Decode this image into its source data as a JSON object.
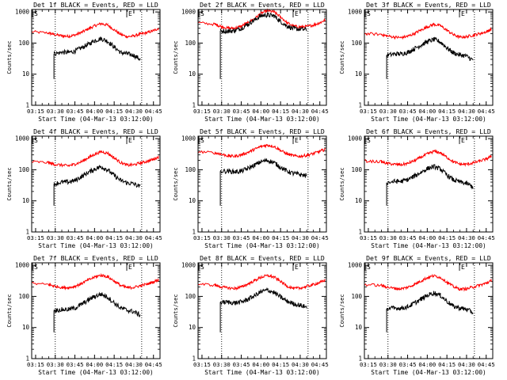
{
  "page": {
    "background": "#ffffff"
  },
  "colors": {
    "events": "#000000",
    "lld": "#ff0000",
    "axis": "#000000"
  },
  "chart_data": [
    {
      "type": "line",
      "title": "Det 1f BLACK = Events, RED = LLD",
      "xlabel": "Start Time (04-Mar-13 03:12:00)",
      "ylabel": "Counts/sec",
      "yscale": "log",
      "ylim": [
        1,
        1200
      ],
      "xlim": [
        "03:12",
        "04:50"
      ],
      "xtick_labels": [
        "03:15",
        "03:30",
        "03:45",
        "04:00",
        "04:15",
        "04:30",
        "04:45"
      ],
      "ytick_labels": [
        "1",
        "10",
        "100",
        "1000"
      ],
      "markers": [
        {
          "label": "S",
          "time": "03:12"
        },
        {
          "label": "E",
          "time": "04:24"
        }
      ],
      "dotted_lines": [
        "03:30",
        "04:36"
      ],
      "x": [
        "03:12",
        "03:25",
        "03:29",
        "03:35",
        "03:40",
        "03:45",
        "03:50",
        "03:55",
        "04:00",
        "04:05",
        "04:10",
        "04:15",
        "04:20",
        "04:25",
        "04:30",
        "04:35",
        "04:40",
        "04:45",
        "04:49"
      ],
      "series": [
        {
          "name": "LLD",
          "values": [
            230,
            210,
            190,
            170,
            165,
            180,
            220,
            280,
            360,
            420,
            380,
            270,
            190,
            160,
            170,
            195,
            215,
            250,
            300
          ]
        },
        {
          "name": "Events",
          "values": [
            null,
            null,
            45,
            50,
            50,
            55,
            70,
            90,
            120,
            140,
            115,
            75,
            50,
            45,
            40,
            30,
            null,
            null,
            null
          ]
        }
      ]
    },
    {
      "type": "line",
      "title": "Det 2f BLACK = Events, RED = LLD",
      "xlabel": "Start Time (04-Mar-13 03:12:00)",
      "ylabel": "Counts/sec",
      "yscale": "log",
      "ylim": [
        1,
        1200
      ],
      "xlim": [
        "03:12",
        "04:50"
      ],
      "xtick_labels": [
        "03:15",
        "03:30",
        "03:45",
        "04:00",
        "04:15",
        "04:30",
        "04:45"
      ],
      "ytick_labels": [
        "1",
        "10",
        "100",
        "1000"
      ],
      "markers": [
        {
          "label": "S",
          "time": "03:12"
        },
        {
          "label": "E",
          "time": "04:24"
        }
      ],
      "dotted_lines": [
        "03:30",
        "04:36"
      ],
      "x": [
        "03:12",
        "03:25",
        "03:29",
        "03:35",
        "03:40",
        "03:45",
        "03:50",
        "03:55",
        "04:00",
        "04:05",
        "04:10",
        "04:15",
        "04:20",
        "04:25",
        "04:30",
        "04:35",
        "04:40",
        "04:45",
        "04:49"
      ],
      "series": [
        {
          "name": "LLD",
          "values": [
            450,
            400,
            350,
            300,
            300,
            350,
            450,
            600,
            900,
            1100,
            1000,
            700,
            450,
            350,
            330,
            340,
            380,
            450,
            550
          ]
        },
        {
          "name": "Events",
          "values": [
            null,
            null,
            250,
            240,
            250,
            300,
            400,
            550,
            750,
            800,
            750,
            500,
            350,
            290,
            280,
            270,
            null,
            null,
            null
          ]
        }
      ]
    },
    {
      "type": "line",
      "title": "Det 3f BLACK = Events, RED = LLD",
      "xlabel": "Start Time (04-Mar-13 03:12:00)",
      "ylabel": "Counts/sec",
      "yscale": "log",
      "ylim": [
        1,
        1200
      ],
      "xlim": [
        "03:12",
        "04:50"
      ],
      "xtick_labels": [
        "03:15",
        "03:30",
        "03:45",
        "04:00",
        "04:15",
        "04:30",
        "04:45"
      ],
      "ytick_labels": [
        "1",
        "10",
        "100",
        "1000"
      ],
      "markers": [
        {
          "label": "S",
          "time": "03:12"
        },
        {
          "label": "E",
          "time": "04:24"
        }
      ],
      "dotted_lines": [
        "03:30",
        "04:36"
      ],
      "x": [
        "03:12",
        "03:25",
        "03:29",
        "03:35",
        "03:40",
        "03:45",
        "03:50",
        "03:55",
        "04:00",
        "04:05",
        "04:10",
        "04:15",
        "04:20",
        "04:25",
        "04:30",
        "04:35",
        "04:40",
        "04:45",
        "04:49"
      ],
      "series": [
        {
          "name": "LLD",
          "values": [
            200,
            190,
            170,
            155,
            150,
            165,
            200,
            260,
            330,
            400,
            360,
            260,
            185,
            155,
            160,
            180,
            200,
            230,
            280
          ]
        },
        {
          "name": "Events",
          "values": [
            null,
            null,
            40,
            45,
            45,
            50,
            65,
            85,
            110,
            130,
            110,
            70,
            48,
            42,
            38,
            28,
            null,
            null,
            null
          ]
        }
      ]
    },
    {
      "type": "line",
      "title": "Det 4f BLACK = Events, RED = LLD",
      "xlabel": "Start Time (04-Mar-13 03:12:00)",
      "ylabel": "Counts/sec",
      "yscale": "log",
      "ylim": [
        1,
        1200
      ],
      "xlim": [
        "03:12",
        "04:50"
      ],
      "xtick_labels": [
        "03:15",
        "03:30",
        "03:45",
        "04:00",
        "04:15",
        "04:30",
        "04:45"
      ],
      "ytick_labels": [
        "1",
        "10",
        "100",
        "1000"
      ],
      "markers": [
        {
          "label": "S",
          "time": "03:12"
        },
        {
          "label": "E",
          "time": "04:24"
        }
      ],
      "dotted_lines": [
        "03:30",
        "04:36"
      ],
      "x": [
        "03:12",
        "03:25",
        "03:29",
        "03:35",
        "03:40",
        "03:45",
        "03:50",
        "03:55",
        "04:00",
        "04:05",
        "04:10",
        "04:15",
        "04:20",
        "04:25",
        "04:30",
        "04:35",
        "04:40",
        "04:45",
        "04:49"
      ],
      "series": [
        {
          "name": "LLD",
          "values": [
            180,
            170,
            150,
            140,
            135,
            150,
            180,
            240,
            310,
            380,
            340,
            240,
            170,
            140,
            145,
            165,
            185,
            215,
            260
          ]
        },
        {
          "name": "Events",
          "values": [
            null,
            null,
            35,
            40,
            40,
            45,
            60,
            80,
            105,
            125,
            100,
            65,
            45,
            38,
            35,
            28,
            null,
            null,
            null
          ]
        }
      ]
    },
    {
      "type": "line",
      "title": "Det 5f BLACK = Events, RED = LLD",
      "xlabel": "Start Time (04-Mar-13 03:12:00)",
      "ylabel": "Counts/sec",
      "yscale": "log",
      "ylim": [
        1,
        1200
      ],
      "xlim": [
        "03:12",
        "04:50"
      ],
      "xtick_labels": [
        "03:15",
        "03:30",
        "03:45",
        "04:00",
        "04:15",
        "04:30",
        "04:45"
      ],
      "ytick_labels": [
        "1",
        "10",
        "100",
        "1000"
      ],
      "markers": [
        {
          "label": "S",
          "time": "03:12"
        },
        {
          "label": "E",
          "time": "04:24"
        }
      ],
      "dotted_lines": [
        "03:30",
        "04:36"
      ],
      "x": [
        "03:12",
        "03:25",
        "03:29",
        "03:35",
        "03:40",
        "03:45",
        "03:50",
        "03:55",
        "04:00",
        "04:05",
        "04:10",
        "04:15",
        "04:20",
        "04:25",
        "04:30",
        "04:35",
        "04:40",
        "04:45",
        "04:49"
      ],
      "series": [
        {
          "name": "LLD",
          "values": [
            380,
            350,
            320,
            280,
            270,
            300,
            360,
            450,
            560,
            620,
            560,
            420,
            320,
            280,
            270,
            290,
            330,
            390,
            450
          ]
        },
        {
          "name": "Events",
          "values": [
            null,
            null,
            90,
            90,
            85,
            90,
            110,
            140,
            180,
            200,
            170,
            120,
            90,
            75,
            70,
            65,
            null,
            null,
            null
          ]
        }
      ]
    },
    {
      "type": "line",
      "title": "Det 6f BLACK = Events, RED = LLD",
      "xlabel": "Start Time (04-Mar-13 03:12:00)",
      "ylabel": "Counts/sec",
      "yscale": "log",
      "ylim": [
        1,
        1200
      ],
      "xlim": [
        "03:12",
        "04:50"
      ],
      "xtick_labels": [
        "03:15",
        "03:30",
        "03:45",
        "04:00",
        "04:15",
        "04:30",
        "04:45"
      ],
      "ytick_labels": [
        "1",
        "10",
        "100",
        "1000"
      ],
      "markers": [
        {
          "label": "S",
          "time": "03:12"
        },
        {
          "label": "E",
          "time": "04:24"
        }
      ],
      "dotted_lines": [
        "03:30",
        "04:36"
      ],
      "x": [
        "03:12",
        "03:25",
        "03:29",
        "03:35",
        "03:40",
        "03:45",
        "03:50",
        "03:55",
        "04:00",
        "04:05",
        "04:10",
        "04:15",
        "04:20",
        "04:25",
        "04:30",
        "04:35",
        "04:40",
        "04:45",
        "04:49"
      ],
      "series": [
        {
          "name": "LLD",
          "values": [
            190,
            180,
            160,
            150,
            145,
            160,
            195,
            250,
            320,
            390,
            350,
            250,
            180,
            150,
            150,
            165,
            190,
            220,
            270
          ]
        },
        {
          "name": "Events",
          "values": [
            null,
            null,
            38,
            42,
            42,
            48,
            62,
            82,
            108,
            128,
            105,
            68,
            47,
            40,
            36,
            28,
            null,
            null,
            null
          ]
        }
      ]
    },
    {
      "type": "line",
      "title": "Det 7f BLACK = Events, RED = LLD",
      "xlabel": "Start Time (04-Mar-13 03:12:00)",
      "ylabel": "Counts/sec",
      "yscale": "log",
      "ylim": [
        1,
        1200
      ],
      "xlim": [
        "03:12",
        "04:50"
      ],
      "xtick_labels": [
        "03:15",
        "03:30",
        "03:45",
        "04:00",
        "04:15",
        "04:30",
        "04:45"
      ],
      "ytick_labels": [
        "1",
        "10",
        "100",
        "1000"
      ],
      "markers": [
        {
          "label": "S",
          "time": "03:12"
        },
        {
          "label": "E",
          "time": "04:24"
        }
      ],
      "dotted_lines": [
        "03:30",
        "04:36"
      ],
      "x": [
        "03:12",
        "03:25",
        "03:29",
        "03:35",
        "03:40",
        "03:45",
        "03:50",
        "03:55",
        "04:00",
        "04:05",
        "04:10",
        "04:15",
        "04:20",
        "04:25",
        "04:30",
        "04:35",
        "04:40",
        "04:45",
        "04:49"
      ],
      "series": [
        {
          "name": "LLD",
          "values": [
            260,
            240,
            215,
            195,
            190,
            210,
            260,
            330,
            420,
            480,
            430,
            310,
            225,
            190,
            195,
            220,
            250,
            290,
            350
          ]
        },
        {
          "name": "Events",
          "values": [
            null,
            null,
            35,
            38,
            38,
            42,
            55,
            75,
            100,
            118,
            95,
            62,
            42,
            36,
            32,
            25,
            null,
            null,
            null
          ]
        }
      ]
    },
    {
      "type": "line",
      "title": "Det 8f BLACK = Events, RED = LLD",
      "xlabel": "Start Time (04-Mar-13 03:12:00)",
      "ylabel": "Counts/sec",
      "yscale": "log",
      "ylim": [
        1,
        1200
      ],
      "xlim": [
        "03:12",
        "04:50"
      ],
      "xtick_labels": [
        "03:15",
        "03:30",
        "03:45",
        "04:00",
        "04:15",
        "04:30",
        "04:45"
      ],
      "ytick_labels": [
        "1",
        "10",
        "100",
        "1000"
      ],
      "markers": [
        {
          "label": "S",
          "time": "03:12"
        },
        {
          "label": "E",
          "time": "04:24"
        }
      ],
      "dotted_lines": [
        "03:30",
        "04:36"
      ],
      "x": [
        "03:12",
        "03:25",
        "03:29",
        "03:35",
        "03:40",
        "03:45",
        "03:50",
        "03:55",
        "04:00",
        "04:05",
        "04:10",
        "04:15",
        "04:20",
        "04:25",
        "04:30",
        "04:35",
        "04:40",
        "04:45",
        "04:49"
      ],
      "series": [
        {
          "name": "LLD",
          "values": [
            250,
            230,
            205,
            185,
            180,
            200,
            250,
            320,
            410,
            470,
            420,
            300,
            215,
            180,
            185,
            210,
            240,
            280,
            330
          ]
        },
        {
          "name": "Events",
          "values": [
            null,
            null,
            65,
            65,
            62,
            66,
            80,
            105,
            140,
            160,
            135,
            95,
            70,
            58,
            52,
            45,
            null,
            null,
            null
          ]
        }
      ]
    },
    {
      "type": "line",
      "title": "Det 9f BLACK = Events, RED = LLD",
      "xlabel": "Start Time (04-Mar-13 03:12:00)",
      "ylabel": "Counts/sec",
      "yscale": "log",
      "ylim": [
        1,
        1200
      ],
      "xlim": [
        "03:12",
        "04:50"
      ],
      "xtick_labels": [
        "03:15",
        "03:30",
        "03:45",
        "04:00",
        "04:15",
        "04:30",
        "04:45"
      ],
      "ytick_labels": [
        "1",
        "10",
        "100",
        "1000"
      ],
      "markers": [
        {
          "label": "S",
          "time": "03:12"
        },
        {
          "label": "E",
          "time": "04:24"
        }
      ],
      "dotted_lines": [
        "03:30",
        "04:36"
      ],
      "x": [
        "03:12",
        "03:25",
        "03:29",
        "03:35",
        "03:40",
        "03:45",
        "03:50",
        "03:55",
        "04:00",
        "04:05",
        "04:10",
        "04:15",
        "04:20",
        "04:25",
        "04:30",
        "04:35",
        "04:40",
        "04:45",
        "04:49"
      ],
      "series": [
        {
          "name": "LLD",
          "values": [
            240,
            225,
            200,
            180,
            175,
            195,
            240,
            310,
            400,
            460,
            410,
            290,
            205,
            170,
            175,
            200,
            230,
            265,
            320
          ]
        },
        {
          "name": "Events",
          "values": [
            null,
            null,
            40,
            42,
            42,
            46,
            60,
            80,
            108,
            130,
            108,
            70,
            48,
            42,
            38,
            30,
            null,
            null,
            null
          ]
        }
      ]
    }
  ]
}
